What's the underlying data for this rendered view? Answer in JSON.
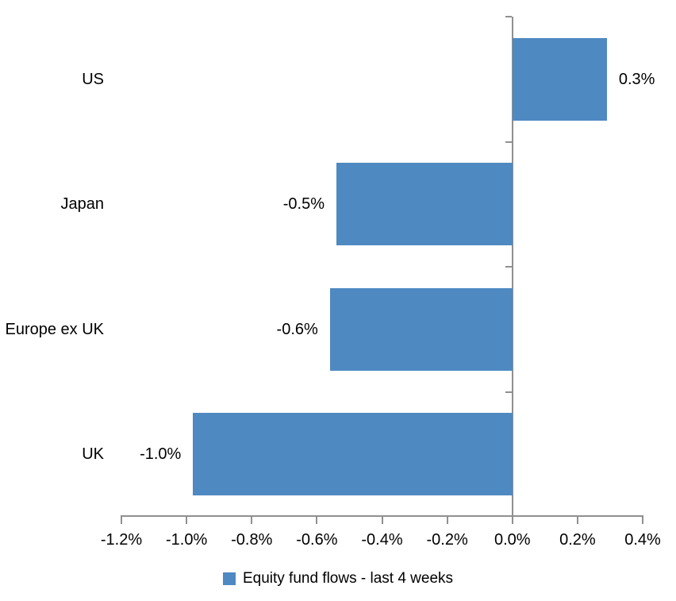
{
  "chart_data": {
    "type": "bar",
    "orientation": "horizontal",
    "title": "",
    "xlabel": "",
    "ylabel": "",
    "categories": [
      "US",
      "Japan",
      "Europe ex UK",
      "UK"
    ],
    "values": [
      0.3,
      -0.5,
      -0.6,
      -1.0
    ],
    "values_precise": [
      0.29,
      -0.54,
      -0.56,
      -0.98
    ],
    "data_labels": [
      "0.3%",
      "-0.5%",
      "-0.6%",
      "-1.0%"
    ],
    "series_name": "Equity fund flows - last 4 weeks",
    "xlim": [
      -1.2,
      0.4
    ],
    "x_tick_values": [
      -1.2,
      -1.0,
      -0.8,
      -0.6,
      -0.4,
      -0.2,
      0.0,
      0.2,
      0.4
    ],
    "x_tick_labels": [
      "-1.2%",
      "-1.0%",
      "-0.8%",
      "-0.6%",
      "-0.4%",
      "-0.2%",
      "0.0%",
      "0.2%",
      "0.4%"
    ],
    "grid": false,
    "legend_position": "bottom",
    "colors": {
      "bar": "#4E89C2",
      "axis": "#909090",
      "text": "#000000",
      "background": "#FFFFFF"
    }
  }
}
